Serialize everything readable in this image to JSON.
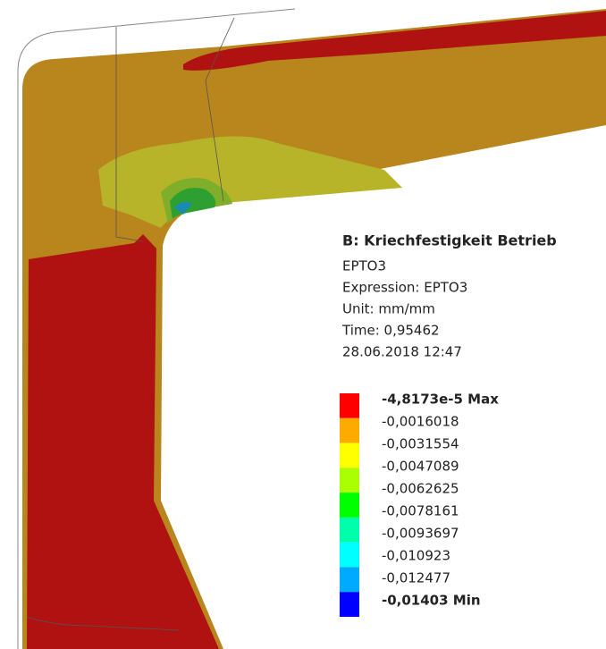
{
  "legend": {
    "title": "B: Kriechfestigkeit Betrieb",
    "lines": [
      "EPTO3",
      "Expression: EPTO3",
      "Unit: mm/mm",
      "Time: 0,95462",
      "28.06.2018 12:47"
    ],
    "labels": [
      "-4,8173e-5 Max",
      "-0,0016018",
      "-0,0031554",
      "-0,0047089",
      "-0,0062625",
      "-0,0078161",
      "-0,0093697",
      "-0,010923",
      "-0,012477",
      "-0,01403 Min"
    ],
    "colors": [
      "#ff0000",
      "#ffaa00",
      "#ffff00",
      "#aaff00",
      "#00ff00",
      "#00ffaa",
      "#00ffff",
      "#00aaff",
      "#0000ff"
    ]
  }
}
